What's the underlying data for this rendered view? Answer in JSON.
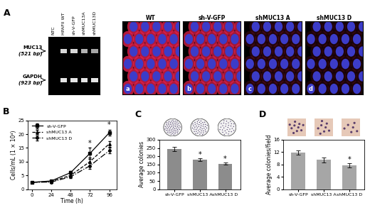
{
  "panel_a": {
    "label": "A",
    "gel": {
      "lanes": [
        "NTC",
        "HPAFII WT",
        "sh-V-GFP",
        "shMUC13A",
        "shMUC13D"
      ],
      "bands": [
        {
          "name": "MUC13",
          "size": "(521 bp)",
          "intensity": [
            0,
            0.85,
            0.85,
            0.7,
            0.65
          ]
        },
        {
          "name": "GAPDH",
          "size": "(923 bp)",
          "intensity": [
            0,
            0.9,
            0.9,
            0.9,
            0.9
          ]
        }
      ]
    },
    "micrographs": [
      {
        "title": "WT",
        "letter": "a",
        "signal": 1.0
      },
      {
        "title": "sh-V-GFP",
        "letter": "b",
        "signal": 0.9
      },
      {
        "title": "shMUC13 A",
        "letter": "c",
        "signal": 0.2
      },
      {
        "title": "shMUC13 D",
        "letter": "d",
        "signal": 0.15
      }
    ]
  },
  "chart_data": [
    {
      "type": "line",
      "title": "B",
      "x": [
        0,
        24,
        48,
        72,
        96
      ],
      "xlim": [
        -5,
        105
      ],
      "xticks": [
        0,
        24,
        48,
        72,
        96
      ],
      "ylim": [
        0,
        25
      ],
      "yticks": [
        0,
        5,
        10,
        15,
        20,
        25
      ],
      "x_label": "Time (h)",
      "y_label": "Cells/mL (1 × 10⁴)",
      "legend": "upper left",
      "series": [
        {
          "name": "sh-V-GFP",
          "color": "#000000",
          "marker": "square",
          "line_style": "solid",
          "values": [
            2.5,
            3.0,
            6.0,
            13.0,
            20.5
          ],
          "errors": [
            0.3,
            0.3,
            0.5,
            2.0,
            1.0
          ]
        },
        {
          "name": "shMUC13 A",
          "color": "#000000",
          "marker": "triangle",
          "line_style": "dashed",
          "values": [
            2.5,
            2.8,
            5.0,
            10.0,
            16.5
          ],
          "errors": [
            0.3,
            0.3,
            0.5,
            1.5,
            1.0
          ]
        },
        {
          "name": "shMUC13 D",
          "color": "#000000",
          "marker": "circle",
          "line_style": "dashdot",
          "values": [
            2.5,
            2.6,
            4.5,
            8.5,
            14.0
          ],
          "errors": [
            0.3,
            0.3,
            0.5,
            1.0,
            1.0
          ]
        }
      ],
      "annotations": [
        {
          "text": "*",
          "x": 72,
          "y": 15.5
        },
        {
          "text": "*",
          "x": 96,
          "y": 22.0
        }
      ]
    },
    {
      "type": "bar",
      "title": "C",
      "categories": [
        "sh-V-GFP",
        "shMUC13 A",
        "shMUC13 D"
      ],
      "values": [
        245,
        180,
        155
      ],
      "errors": [
        12,
        8,
        6
      ],
      "color": "#8c8c8c",
      "ylim": [
        0,
        300
      ],
      "yticks": [
        0,
        50,
        100,
        150,
        200,
        250,
        300
      ],
      "y_label": "Average colonies",
      "annotations": [
        {
          "text": "*",
          "x": 1,
          "y": 190
        },
        {
          "text": "*",
          "x": 2,
          "y": 163
        }
      ]
    },
    {
      "type": "bar",
      "title": "D",
      "categories": [
        "sh-V-GFP",
        "shMUC13 A",
        "shMUC13 D"
      ],
      "values": [
        11.8,
        9.5,
        7.7
      ],
      "errors": [
        0.7,
        0.8,
        0.7
      ],
      "color": "#a6a6a6",
      "ylim": [
        0,
        16
      ],
      "yticks": [
        0,
        4,
        8,
        12,
        16
      ],
      "y_label": "Average colonies/field",
      "annotations": [
        {
          "text": "*",
          "x": 2,
          "y": 8.5
        }
      ]
    }
  ]
}
